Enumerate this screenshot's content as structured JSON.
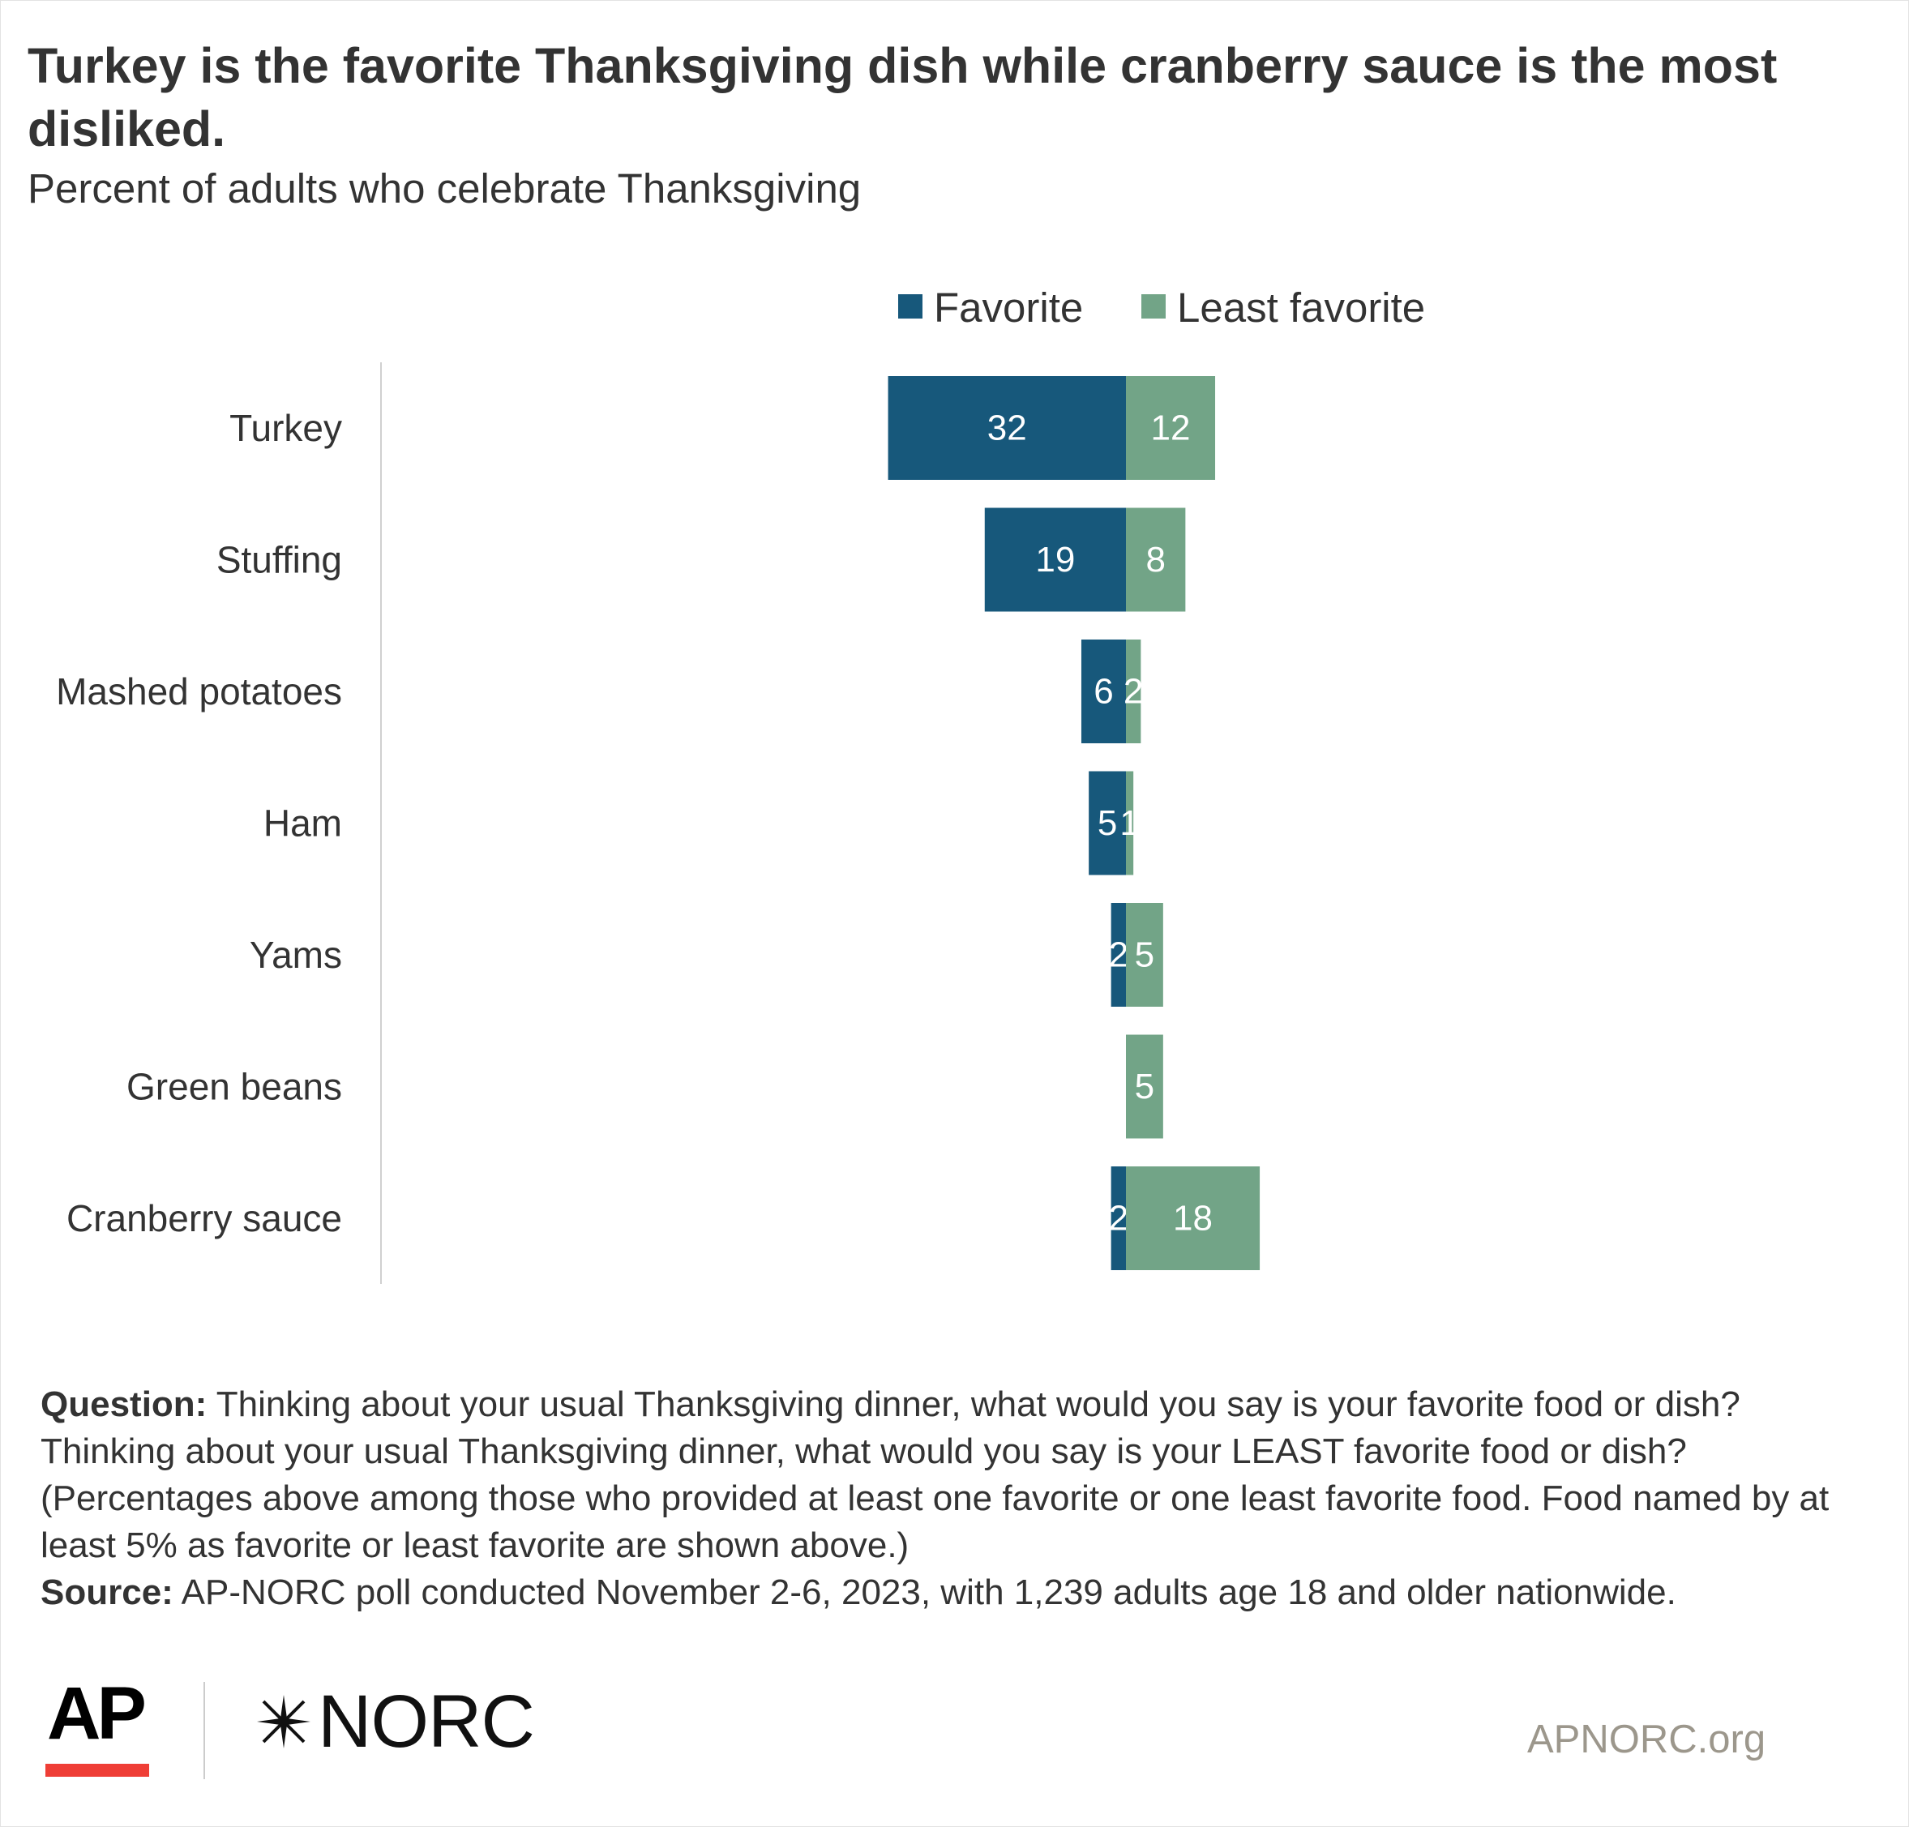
{
  "chart_data": {
    "type": "bar",
    "orientation": "horizontal",
    "stacking": "diverging",
    "title": "Turkey is the favorite Thanksgiving dish while cranberry sauce is the most disliked.",
    "subtitle": "Percent of adults who celebrate Thanksgiving",
    "categories": [
      "Turkey",
      "Stuffing",
      "Mashed potatoes",
      "Ham",
      "Yams",
      "Green beans",
      "Cranberry sauce"
    ],
    "series": [
      {
        "name": "Favorite",
        "color": "#17587b",
        "values": [
          32,
          19,
          6,
          5,
          2,
          0,
          2
        ]
      },
      {
        "name": "Least favorite",
        "color": "#72a487",
        "values": [
          12,
          8,
          2,
          1,
          5,
          5,
          18
        ]
      }
    ],
    "xlim": [
      -100,
      100
    ],
    "legend": "top-center",
    "grid": false
  },
  "notes": {
    "question_label": "Question:",
    "question_text": " Thinking about your usual Thanksgiving dinner, what would you say is your favorite food or dish? Thinking about your usual Thanksgiving dinner, what would you say is your LEAST favorite food or dish? (Percentages above among those who provided at least one favorite or one least favorite food. Food named by at least 5% as favorite or least favorite are shown above.)",
    "source_label": "Source:",
    "source_text": " AP-NORC poll conducted November 2-6, 2023, with 1,239 adults age 18 and older nationwide."
  },
  "footer": {
    "logo_ap": "AP",
    "logo_norc": "NORC",
    "website": "APNORC.org"
  }
}
